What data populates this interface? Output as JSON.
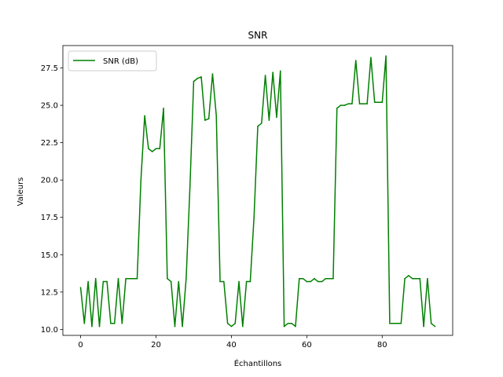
{
  "chart_data": {
    "type": "line",
    "title": "SNR",
    "xlabel": "Échantillons",
    "ylabel": "Valeurs",
    "xlim": [
      -4.7,
      98.7
    ],
    "ylim": [
      9.6,
      29.0
    ],
    "xticks": [
      "0",
      "20",
      "40",
      "60",
      "80"
    ],
    "yticks": [
      "10.0",
      "12.5",
      "15.0",
      "17.5",
      "20.0",
      "22.5",
      "25.0",
      "27.5"
    ],
    "xtick_values": [
      0,
      20,
      40,
      60,
      80
    ],
    "ytick_values": [
      10.0,
      12.5,
      15.0,
      17.5,
      20.0,
      22.5,
      25.0,
      27.5
    ],
    "grid": false,
    "legend_position": "top-left",
    "series": [
      {
        "name": "SNR (dB)",
        "color": "#008000",
        "x": [
          0,
          1,
          2,
          3,
          4,
          5,
          6,
          7,
          8,
          9,
          10,
          11,
          12,
          13,
          14,
          15,
          16,
          17,
          18,
          19,
          20,
          21,
          22,
          23,
          24,
          25,
          26,
          27,
          28,
          29,
          30,
          31,
          32,
          33,
          34,
          35,
          36,
          37,
          38,
          39,
          40,
          41,
          42,
          43,
          44,
          45,
          46,
          47,
          48,
          49,
          50,
          51,
          52,
          53,
          54,
          55,
          56,
          57,
          58,
          59,
          60,
          61,
          62,
          63,
          64,
          65,
          66,
          67,
          68,
          69,
          70,
          71,
          72,
          73,
          74,
          75,
          76,
          77,
          78,
          79,
          80,
          81,
          82,
          83,
          84,
          85,
          86,
          87,
          88,
          89,
          90,
          91,
          92,
          93,
          94
        ],
        "values": [
          12.8,
          10.4,
          13.2,
          10.2,
          13.4,
          10.2,
          13.2,
          13.2,
          10.4,
          10.4,
          13.4,
          10.4,
          13.4,
          13.4,
          13.4,
          13.4,
          20.0,
          24.3,
          22.1,
          21.9,
          22.1,
          22.1,
          24.8,
          13.4,
          13.2,
          10.2,
          13.2,
          10.2,
          13.4,
          19.5,
          26.6,
          26.8,
          26.9,
          24.0,
          24.1,
          27.1,
          24.3,
          13.2,
          13.2,
          10.4,
          10.2,
          10.4,
          13.2,
          10.2,
          13.2,
          13.2,
          17.5,
          23.6,
          23.8,
          27.0,
          24.0,
          27.2,
          24.2,
          27.3,
          10.2,
          10.4,
          10.4,
          10.2,
          13.4,
          13.4,
          13.2,
          13.2,
          13.4,
          13.2,
          13.2,
          13.4,
          13.4,
          13.4,
          24.8,
          25.0,
          25.0,
          25.1,
          25.1,
          28.0,
          25.1,
          25.1,
          25.1,
          28.2,
          25.2,
          25.2,
          25.2,
          28.3,
          10.4,
          10.4,
          10.4,
          10.4,
          13.4,
          13.6,
          13.4,
          13.4,
          13.4,
          10.2,
          13.4,
          10.4,
          10.2
        ]
      }
    ]
  }
}
